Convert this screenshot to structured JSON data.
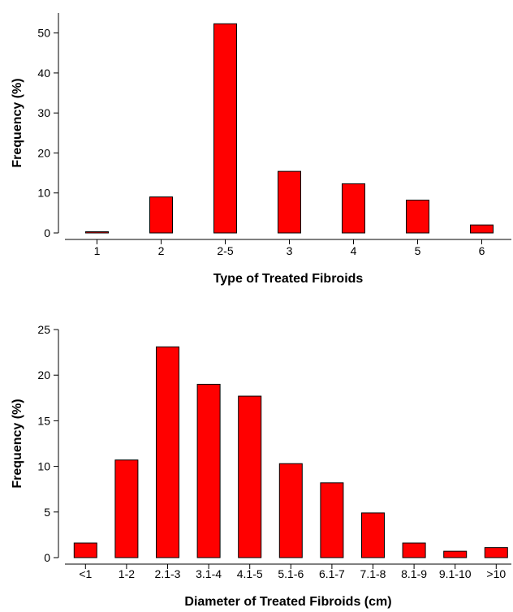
{
  "chart_data": [
    {
      "type": "bar",
      "categories": [
        "1",
        "2",
        "2-5",
        "3",
        "4",
        "5",
        "6"
      ],
      "values": [
        0.3,
        9,
        52.3,
        15.4,
        12.3,
        8.2,
        2
      ],
      "xlabel": "Type of Treated Fibroids",
      "ylabel": "Frequency (%)",
      "ylim": [
        0,
        55
      ],
      "yticks": [
        0,
        10,
        20,
        30,
        40,
        50
      ],
      "grid": false,
      "bar_color": "#ff0000"
    },
    {
      "type": "bar",
      "categories": [
        "<1",
        "1-2",
        "2.1-3",
        "3.1-4",
        "4.1-5",
        "5.1-6",
        "6.1-7",
        "7.1-8",
        "8.1-9",
        "9.1-10",
        ">10"
      ],
      "values": [
        1.6,
        10.7,
        23.1,
        19,
        17.7,
        10.3,
        8.2,
        4.9,
        1.6,
        0.7,
        1.1
      ],
      "xlabel": "Diameter of Treated Fibroids (cm)",
      "ylabel": "Frequency (%)",
      "ylim": [
        0,
        25
      ],
      "yticks": [
        0,
        5,
        10,
        15,
        20,
        25
      ],
      "grid": false,
      "bar_color": "#ff0000"
    }
  ]
}
